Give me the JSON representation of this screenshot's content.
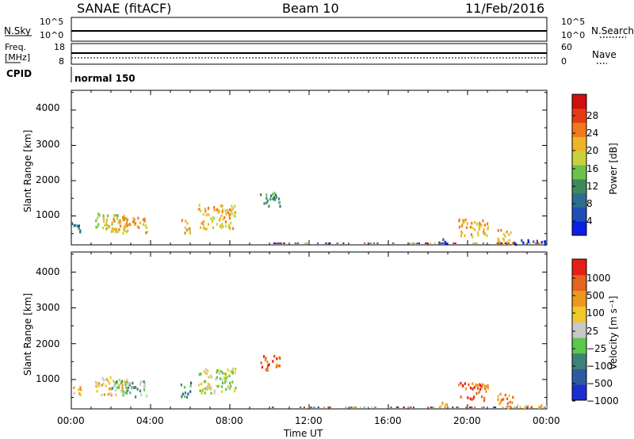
{
  "header": {
    "station": "SANAE (fitACF)",
    "beam": "Beam 10",
    "date": "11/Feb/2016"
  },
  "aux_panels": {
    "nsky_label": "N.Sky",
    "nsky_ticks": [
      "10^5",
      "10^0"
    ],
    "nsearch_label": "N.Search",
    "nsearch_ticks": [
      "10^5",
      "10^0"
    ],
    "freq_label": "Freq.",
    "freq_unit": "[MHz]",
    "freq_ticks": [
      "18",
      "8"
    ],
    "nave_label": "Nave",
    "nave_ticks": [
      "60",
      "0"
    ],
    "cpid_label": "CPID",
    "cpid_value": "normal 150"
  },
  "x_axis": {
    "label": "Time UT",
    "ticks": [
      "00:00",
      "04:00",
      "08:00",
      "12:00",
      "16:00",
      "20:00",
      "00:00"
    ]
  },
  "colors": {
    "power_scale": [
      "#0a1ee6",
      "#1e4fb5",
      "#2c6e8f",
      "#3b8a5a",
      "#6cc24a",
      "#c8d23c",
      "#f0b428",
      "#f07a1e",
      "#e63c14",
      "#d20f0f"
    ],
    "velocity_scale": [
      "#1e2dd2",
      "#2d5aa0",
      "#3c8278",
      "#5ac84b",
      "#c8c8c8",
      "#f0c828",
      "#f0961e",
      "#e6641e",
      "#e61e14"
    ]
  },
  "chart_data": [
    {
      "type": "heatmap",
      "name": "power",
      "xlabel": "Time UT",
      "ylabel": "Slant Range [km]",
      "xlim": [
        0,
        24
      ],
      "ylim": [
        180,
        4560
      ],
      "yticks": [
        "4000",
        "3000",
        "2000",
        "1000"
      ],
      "colorbar_label": "Power [dB]",
      "colorbar_ticks": [
        "28",
        "24",
        "20",
        "16",
        "12",
        "8",
        "4"
      ],
      "clusters": [
        {
          "t0": 0.0,
          "t1": 0.5,
          "r0": 500,
          "r1": 800,
          "level": 2
        },
        {
          "t0": 1.2,
          "t1": 2.8,
          "r0": 550,
          "r1": 1050,
          "level": 5
        },
        {
          "t0": 2.0,
          "t1": 3.8,
          "r0": 500,
          "r1": 950,
          "level": 6
        },
        {
          "t0": 5.5,
          "t1": 6.0,
          "r0": 500,
          "r1": 900,
          "level": 6
        },
        {
          "t0": 6.4,
          "t1": 8.3,
          "r0": 600,
          "r1": 1300,
          "level": 6
        },
        {
          "t0": 9.5,
          "t1": 10.5,
          "r0": 1250,
          "r1": 1650,
          "level": 3
        },
        {
          "t0": 18.5,
          "t1": 19.0,
          "r0": 180,
          "r1": 350,
          "level": 0
        },
        {
          "t0": 19.5,
          "t1": 21.0,
          "r0": 400,
          "r1": 900,
          "level": 6
        },
        {
          "t0": 21.5,
          "t1": 22.3,
          "r0": 180,
          "r1": 600,
          "level": 6
        },
        {
          "t0": 22.0,
          "t1": 24.0,
          "r0": 180,
          "r1": 300,
          "level": 1
        }
      ]
    },
    {
      "type": "heatmap",
      "name": "velocity",
      "xlabel": "Time UT",
      "ylabel": "Slant Range [km]",
      "xlim": [
        0,
        24
      ],
      "ylim": [
        180,
        4560
      ],
      "yticks": [
        "4000",
        "3000",
        "2000",
        "1000"
      ],
      "colorbar_label": "Velocity [m s⁻¹]",
      "colorbar_ticks": [
        "1000",
        "500",
        "100",
        "25",
        "−25",
        "−100",
        "−500",
        "−1000"
      ],
      "clusters": [
        {
          "t0": 0.0,
          "t1": 0.5,
          "r0": 500,
          "r1": 800,
          "level": 5
        },
        {
          "t0": 1.2,
          "t1": 2.8,
          "r0": 550,
          "r1": 1050,
          "level": 5
        },
        {
          "t0": 2.0,
          "t1": 3.8,
          "r0": 500,
          "r1": 950,
          "level": 3
        },
        {
          "t0": 5.5,
          "t1": 6.0,
          "r0": 500,
          "r1": 900,
          "level": 2
        },
        {
          "t0": 6.4,
          "t1": 8.3,
          "r0": 600,
          "r1": 1300,
          "level": 4
        },
        {
          "t0": 9.5,
          "t1": 10.5,
          "r0": 1250,
          "r1": 1650,
          "level": 7
        },
        {
          "t0": 18.5,
          "t1": 19.0,
          "r0": 180,
          "r1": 350,
          "level": 5
        },
        {
          "t0": 19.5,
          "t1": 21.0,
          "r0": 400,
          "r1": 900,
          "level": 7
        },
        {
          "t0": 21.5,
          "t1": 22.3,
          "r0": 180,
          "r1": 600,
          "level": 6
        },
        {
          "t0": 22.0,
          "t1": 24.0,
          "r0": 180,
          "r1": 300,
          "level": 5
        }
      ]
    }
  ]
}
